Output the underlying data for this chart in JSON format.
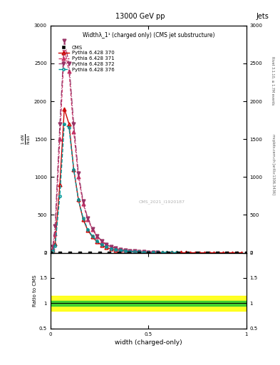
{
  "title": "13000 GeV pp",
  "title_right": "Jets",
  "plot_title": "Widthλ_1¹ (charged only) (CMS jet substructure)",
  "xlabel": "width (charged-only)",
  "ylabel_ratio": "Ratio to CMS",
  "watermark": "CMS_2021_I1920187",
  "rivet_label": "Rivet 3.1.10, ≥ 1.7M events",
  "arxiv_label": "mcplots.cern.ch [arXiv:1306.3436]",
  "xlim": [
    0,
    1
  ],
  "ylim_main": [
    0,
    3000
  ],
  "ylim_ratio": [
    0.5,
    2
  ],
  "yticks_main": [
    0,
    500,
    1000,
    1500,
    2000,
    2500,
    3000
  ],
  "yticks_ratio": [
    0.5,
    1,
    1.5,
    2
  ],
  "py370_x": [
    0.012,
    0.024,
    0.048,
    0.071,
    0.095,
    0.119,
    0.143,
    0.167,
    0.19,
    0.214,
    0.238,
    0.262,
    0.286,
    0.31,
    0.333,
    0.357,
    0.381,
    0.405,
    0.429,
    0.452,
    0.476,
    0.5,
    0.524,
    0.548,
    0.571,
    0.595,
    0.619,
    0.643,
    0.667,
    0.69,
    0.714,
    0.738,
    0.762,
    0.786,
    0.81,
    0.833,
    0.857,
    0.881,
    0.905,
    0.929,
    0.952,
    0.976
  ],
  "py370_y": [
    30,
    120,
    900,
    1900,
    1700,
    1100,
    700,
    440,
    300,
    210,
    145,
    100,
    70,
    50,
    38,
    30,
    22,
    17,
    13,
    10,
    8,
    6,
    4.5,
    3.5,
    2.5,
    2,
    1.5,
    1,
    0.8,
    0.6,
    0.4,
    0.3,
    0.2,
    0.15,
    0.1,
    0.08,
    0.05,
    0.03,
    0.02,
    0.01,
    0.005,
    0.002
  ],
  "py371_x": [
    0.012,
    0.024,
    0.048,
    0.071,
    0.095,
    0.119,
    0.143,
    0.167,
    0.19,
    0.214,
    0.238,
    0.262,
    0.286,
    0.31,
    0.333,
    0.357,
    0.381,
    0.405,
    0.429,
    0.452,
    0.476,
    0.5,
    0.524,
    0.548
  ],
  "py371_y": [
    60,
    250,
    1500,
    2700,
    2400,
    1600,
    1000,
    650,
    440,
    310,
    215,
    150,
    105,
    75,
    56,
    42,
    32,
    24,
    18,
    14,
    10,
    8,
    6,
    4.5
  ],
  "py372_x": [
    0.012,
    0.024,
    0.048,
    0.071,
    0.095,
    0.119,
    0.143,
    0.167,
    0.19,
    0.214,
    0.238,
    0.262,
    0.286,
    0.31,
    0.333,
    0.357,
    0.381,
    0.405,
    0.429,
    0.452,
    0.476,
    0.5,
    0.524,
    0.548
  ],
  "py372_y": [
    80,
    350,
    1700,
    2800,
    2500,
    1700,
    1050,
    680,
    460,
    320,
    225,
    158,
    110,
    80,
    60,
    45,
    34,
    26,
    20,
    15,
    11,
    8.5,
    6.5,
    5
  ],
  "py376_x": [
    0.012,
    0.024,
    0.048,
    0.071,
    0.095,
    0.119,
    0.143,
    0.167,
    0.19,
    0.214,
    0.238,
    0.262,
    0.286,
    0.31,
    0.333,
    0.357,
    0.381,
    0.405,
    0.429,
    0.452,
    0.476,
    0.5,
    0.524,
    0.548,
    0.571,
    0.595,
    0.619,
    0.643
  ],
  "py376_y": [
    20,
    90,
    750,
    1700,
    1650,
    1100,
    700,
    460,
    310,
    220,
    155,
    108,
    76,
    55,
    40,
    31,
    23,
    17,
    13,
    10,
    7.5,
    5.5,
    4,
    3,
    2,
    1.5,
    1,
    0.7
  ],
  "color_370": "#cc0000",
  "color_371": "#cc3366",
  "color_372": "#993366",
  "color_376": "#009999",
  "ratio_green_lo": 0.95,
  "ratio_green_hi": 1.05,
  "ratio_yellow_lo": 0.85,
  "ratio_yellow_hi": 1.15
}
